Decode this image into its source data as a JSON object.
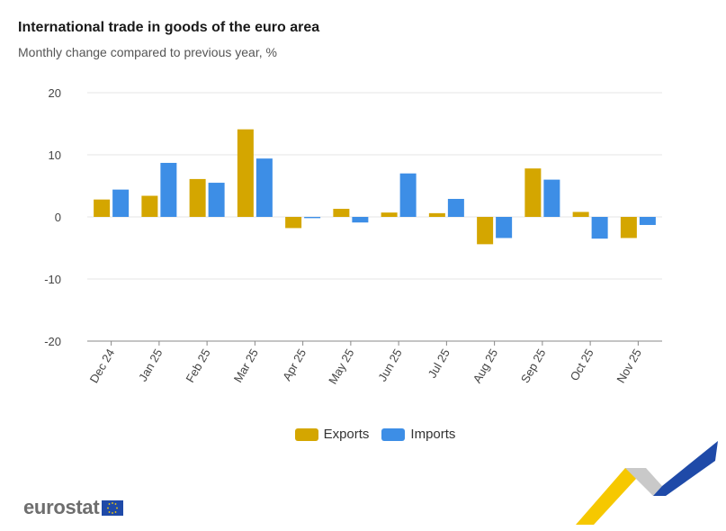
{
  "title": "International trade in goods of the euro area",
  "subtitle": "Monthly change compared to previous year, %",
  "colors": {
    "exports": "#d4a600",
    "imports": "#3d8ee6",
    "grid": "#e6e6e6",
    "axis": "#8a8a8a"
  },
  "chart_data": {
    "type": "bar",
    "categories": [
      "Dec 24",
      "Jan 25",
      "Feb 25",
      "Mar 25",
      "Apr 25",
      "May 25",
      "Jun 25",
      "Jul 25",
      "Aug 25",
      "Sep 25",
      "Oct 25",
      "Nov 25"
    ],
    "series": [
      {
        "name": "Exports",
        "values": [
          2.8,
          3.4,
          6.1,
          14.1,
          -1.8,
          1.3,
          0.7,
          0.6,
          -4.4,
          7.8,
          0.8,
          -3.4
        ]
      },
      {
        "name": "Imports",
        "values": [
          4.4,
          8.7,
          5.5,
          9.4,
          -0.2,
          -0.9,
          7.0,
          2.9,
          -3.4,
          6.0,
          -3.5,
          -1.3
        ]
      }
    ],
    "ylim": [
      -20,
      20
    ],
    "yticks": [
      20,
      10,
      0,
      -10,
      -20
    ],
    "xlabel": "",
    "ylabel": "",
    "legend": "bottom-center"
  },
  "logo_text": "eurostat"
}
